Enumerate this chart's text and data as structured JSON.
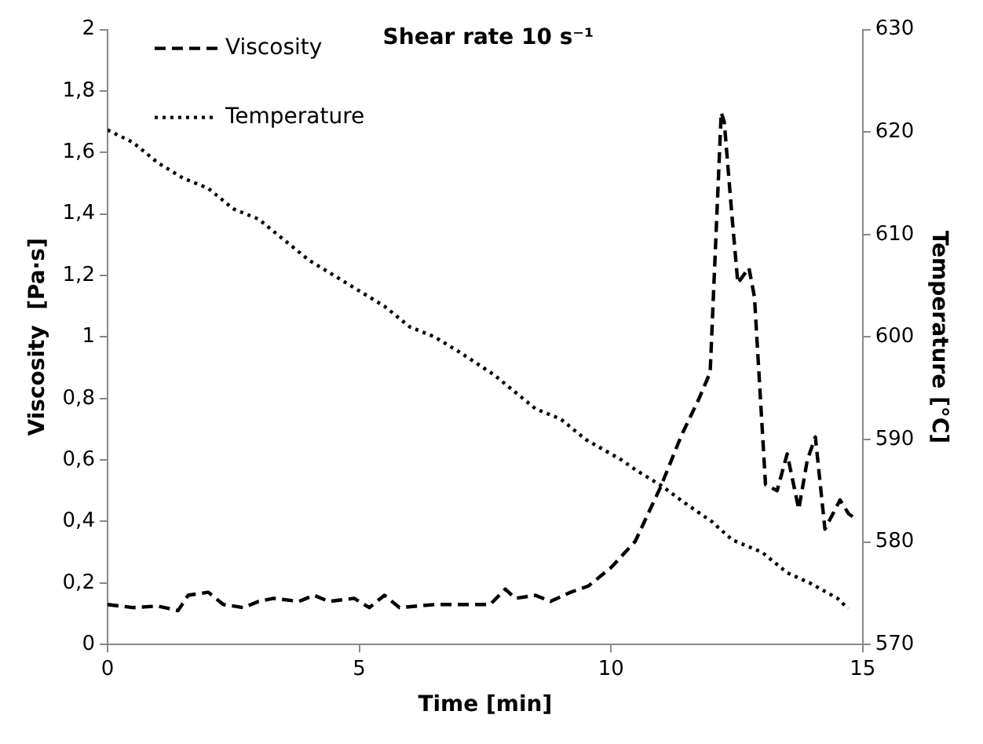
{
  "chart_data": {
    "type": "line",
    "title": "Shear rate 10 s⁻¹",
    "xlabel": "Time [min]",
    "ylabel": "Viscosity  [Pa·s]",
    "y2label": "Temperature [°C]",
    "xlim": [
      0,
      15
    ],
    "xticks": [
      0,
      5,
      10,
      15
    ],
    "ylim": [
      0,
      2
    ],
    "yticks": [
      0,
      {
        "value": 0.2,
        "label": "0,2"
      },
      {
        "value": 0.4,
        "label": "0,4"
      },
      {
        "value": 0.6,
        "label": "0,6"
      },
      {
        "value": 0.8,
        "label": "0,8"
      },
      1,
      {
        "value": 1.2,
        "label": "1,2"
      },
      {
        "value": 1.4,
        "label": "1,4"
      },
      {
        "value": 1.6,
        "label": "1,6"
      },
      {
        "value": 1.8,
        "label": "1,8"
      },
      2
    ],
    "y2lim": [
      570,
      630
    ],
    "y2ticks": [
      570,
      580,
      590,
      600,
      610,
      620,
      630
    ],
    "grid": false,
    "legend": "top left",
    "marker": "none",
    "series": [
      {
        "name": "Viscosity",
        "color": "#000000",
        "line_style": "dashed",
        "x": [
          0,
          0.5,
          1,
          1.4,
          1.6,
          2,
          2.3,
          2.7,
          3,
          3.3,
          3.8,
          4.1,
          4.4,
          4.9,
          5.2,
          5.5,
          5.8,
          6.5,
          7.1,
          7.6,
          7.9,
          8.1,
          8.5,
          8.8,
          9.2,
          9.55,
          10,
          10.48,
          10.98,
          11.4,
          11.75,
          11.97,
          12.19,
          12.25,
          12.4,
          12.52,
          12.74,
          12.85,
          13.07,
          13.3,
          13.5,
          13.73,
          13.9,
          14.06,
          14.25,
          14.55,
          14.72,
          14.85
        ],
        "values": [
          0.13,
          0.12,
          0.125,
          0.11,
          0.16,
          0.17,
          0.13,
          0.12,
          0.14,
          0.15,
          0.14,
          0.16,
          0.14,
          0.15,
          0.12,
          0.16,
          0.12,
          0.13,
          0.13,
          0.13,
          0.18,
          0.15,
          0.16,
          0.14,
          0.17,
          0.19,
          0.25,
          0.335,
          0.51,
          0.68,
          0.8,
          0.885,
          1.73,
          1.7,
          1.4,
          1.175,
          1.225,
          1.13,
          0.52,
          0.5,
          0.62,
          0.44,
          0.6,
          0.675,
          0.375,
          0.47,
          0.425,
          0.41
        ]
      },
      {
        "name": "Temperature",
        "color": "#000000",
        "line_style": "dotted",
        "axis": "y2",
        "x": [
          0,
          0.5,
          1,
          1.5,
          2,
          2.5,
          3,
          3.5,
          4,
          4.5,
          5,
          5.5,
          6,
          6.5,
          7,
          7.68,
          8.5,
          9,
          9.5,
          10.21,
          10.5,
          11,
          11.41,
          12,
          12.41,
          13,
          13.5,
          13.95,
          14.5,
          14.71
        ],
        "values": [
          620.2,
          619,
          617,
          615.5,
          614.5,
          612.5,
          611.5,
          609.5,
          607.5,
          606,
          604.5,
          603,
          601,
          600,
          598.5,
          596.3,
          593,
          592,
          590,
          588,
          587,
          585.5,
          584,
          582,
          580.2,
          579,
          577,
          576,
          574.5,
          573.5
        ]
      }
    ]
  }
}
